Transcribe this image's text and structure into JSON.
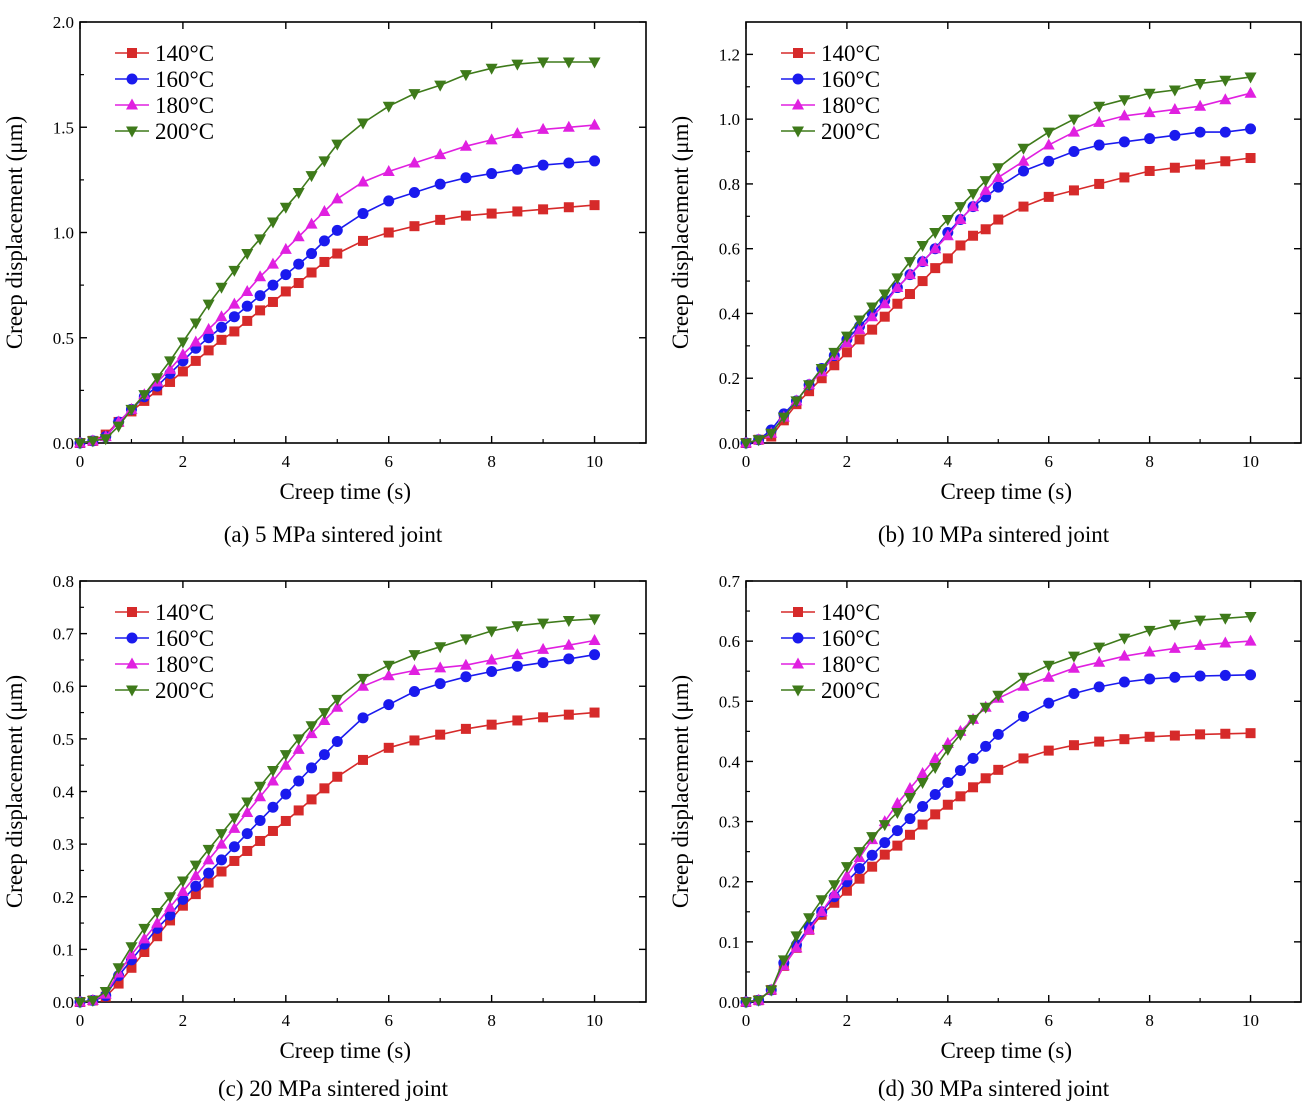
{
  "chart_data": [
    {
      "type": "line",
      "caption": "(a) 5 MPa sintered joint",
      "xlabel": "Creep time (s)",
      "ylabel": "Creep displacement (μm)",
      "xlim": [
        0,
        11
      ],
      "ylim": [
        0,
        2.0
      ],
      "xticks": [
        0,
        2,
        4,
        6,
        8,
        10
      ],
      "yticks": [
        0.0,
        0.5,
        1.0,
        1.5,
        2.0
      ],
      "ytick_labels": [
        "0.0",
        "0.5",
        "1.0",
        "1.5",
        "2.0"
      ],
      "legend_position": "top-left",
      "x": [
        0,
        0.25,
        0.5,
        0.75,
        1,
        1.25,
        1.5,
        1.75,
        2,
        2.25,
        2.5,
        2.75,
        3,
        3.25,
        3.5,
        3.75,
        4,
        4.25,
        4.5,
        4.75,
        5,
        5.5,
        6,
        6.5,
        7,
        7.5,
        8,
        8.5,
        9,
        9.5,
        10
      ],
      "series": [
        {
          "name": "140°C",
          "color": "#d62a2a",
          "marker": "square",
          "values": [
            0,
            0.01,
            0.04,
            0.1,
            0.15,
            0.2,
            0.25,
            0.29,
            0.34,
            0.39,
            0.44,
            0.49,
            0.53,
            0.58,
            0.63,
            0.67,
            0.72,
            0.76,
            0.81,
            0.86,
            0.9,
            0.96,
            1.0,
            1.03,
            1.06,
            1.08,
            1.09,
            1.1,
            1.11,
            1.12,
            1.13
          ]
        },
        {
          "name": "160°C",
          "color": "#1a1aee",
          "marker": "circle",
          "values": [
            0,
            0.01,
            0.03,
            0.1,
            0.16,
            0.22,
            0.27,
            0.33,
            0.39,
            0.45,
            0.5,
            0.55,
            0.6,
            0.65,
            0.7,
            0.75,
            0.8,
            0.85,
            0.9,
            0.96,
            1.01,
            1.09,
            1.15,
            1.19,
            1.23,
            1.26,
            1.28,
            1.3,
            1.32,
            1.33,
            1.34
          ]
        },
        {
          "name": "180°C",
          "color": "#e020e0",
          "marker": "triangle-up",
          "values": [
            0,
            0.01,
            0.03,
            0.1,
            0.16,
            0.23,
            0.29,
            0.35,
            0.42,
            0.48,
            0.54,
            0.6,
            0.66,
            0.72,
            0.79,
            0.85,
            0.92,
            0.98,
            1.04,
            1.1,
            1.16,
            1.24,
            1.29,
            1.33,
            1.37,
            1.41,
            1.44,
            1.47,
            1.49,
            1.5,
            1.51
          ]
        },
        {
          "name": "200°C",
          "color": "#3e7a1a",
          "marker": "triangle-down",
          "values": [
            0,
            0.01,
            0.02,
            0.08,
            0.16,
            0.23,
            0.31,
            0.39,
            0.48,
            0.57,
            0.66,
            0.74,
            0.82,
            0.9,
            0.97,
            1.05,
            1.12,
            1.19,
            1.27,
            1.34,
            1.42,
            1.52,
            1.6,
            1.66,
            1.7,
            1.75,
            1.78,
            1.8,
            1.81,
            1.81,
            1.81
          ]
        }
      ]
    },
    {
      "type": "line",
      "caption": "(b) 10 MPa sintered joint",
      "xlabel": "Creep time (s)",
      "ylabel": "Creep displacement (μm)",
      "xlim": [
        0,
        11
      ],
      "ylim": [
        0,
        1.3
      ],
      "xticks": [
        0,
        2,
        4,
        6,
        8,
        10
      ],
      "yticks": [
        0.0,
        0.2,
        0.4,
        0.6,
        0.8,
        1.0,
        1.2
      ],
      "ytick_labels": [
        "0.0",
        "0.2",
        "0.4",
        "0.6",
        "0.8",
        "1.0",
        "1.2"
      ],
      "legend_position": "top-left",
      "x": [
        0,
        0.25,
        0.5,
        0.75,
        1,
        1.25,
        1.5,
        1.75,
        2,
        2.25,
        2.5,
        2.75,
        3,
        3.25,
        3.5,
        3.75,
        4,
        4.25,
        4.5,
        4.75,
        5,
        5.5,
        6,
        6.5,
        7,
        7.5,
        8,
        8.5,
        9,
        9.5,
        10
      ],
      "series": [
        {
          "name": "140°C",
          "color": "#d62a2a",
          "marker": "square",
          "values": [
            0,
            0.01,
            0.02,
            0.07,
            0.12,
            0.16,
            0.2,
            0.24,
            0.28,
            0.32,
            0.35,
            0.39,
            0.43,
            0.46,
            0.5,
            0.54,
            0.57,
            0.61,
            0.64,
            0.66,
            0.69,
            0.73,
            0.76,
            0.78,
            0.8,
            0.82,
            0.84,
            0.85,
            0.86,
            0.87,
            0.88
          ]
        },
        {
          "name": "160°C",
          "color": "#1a1aee",
          "marker": "circle",
          "values": [
            0,
            0.01,
            0.04,
            0.09,
            0.13,
            0.18,
            0.23,
            0.27,
            0.32,
            0.36,
            0.4,
            0.44,
            0.48,
            0.52,
            0.56,
            0.6,
            0.65,
            0.69,
            0.73,
            0.76,
            0.79,
            0.84,
            0.87,
            0.9,
            0.92,
            0.93,
            0.94,
            0.95,
            0.96,
            0.96,
            0.97
          ]
        },
        {
          "name": "180°C",
          "color": "#e020e0",
          "marker": "triangle-up",
          "values": [
            0,
            0.01,
            0.03,
            0.08,
            0.13,
            0.18,
            0.22,
            0.27,
            0.31,
            0.35,
            0.39,
            0.43,
            0.48,
            0.52,
            0.56,
            0.6,
            0.64,
            0.69,
            0.73,
            0.78,
            0.82,
            0.87,
            0.92,
            0.96,
            0.99,
            1.01,
            1.02,
            1.03,
            1.04,
            1.06,
            1.08
          ]
        },
        {
          "name": "200°C",
          "color": "#3e7a1a",
          "marker": "triangle-down",
          "values": [
            0,
            0.01,
            0.03,
            0.08,
            0.13,
            0.18,
            0.23,
            0.28,
            0.33,
            0.38,
            0.42,
            0.46,
            0.51,
            0.56,
            0.61,
            0.65,
            0.69,
            0.73,
            0.77,
            0.81,
            0.85,
            0.91,
            0.96,
            1.0,
            1.04,
            1.06,
            1.08,
            1.09,
            1.11,
            1.12,
            1.13
          ]
        }
      ]
    },
    {
      "type": "line",
      "caption": "(c) 20 MPa sintered joint",
      "xlabel": "Creep time (s)",
      "ylabel": "Creep displacement (μm)",
      "xlim": [
        0,
        11
      ],
      "ylim": [
        0,
        0.8
      ],
      "xticks": [
        0,
        2,
        4,
        6,
        8,
        10
      ],
      "yticks": [
        0.0,
        0.1,
        0.2,
        0.3,
        0.4,
        0.5,
        0.6,
        0.7,
        0.8
      ],
      "ytick_labels": [
        "0.0",
        "0.1",
        "0.2",
        "0.3",
        "0.4",
        "0.5",
        "0.6",
        "0.7",
        "0.8"
      ],
      "legend_position": "top-left",
      "x": [
        0,
        0.25,
        0.5,
        0.75,
        1,
        1.25,
        1.5,
        1.75,
        2,
        2.25,
        2.5,
        2.75,
        3,
        3.25,
        3.5,
        3.75,
        4,
        4.25,
        4.5,
        4.75,
        5,
        5.5,
        6,
        6.5,
        7,
        7.5,
        8,
        8.5,
        9,
        9.5,
        10
      ],
      "series": [
        {
          "name": "140°C",
          "color": "#d62a2a",
          "marker": "square",
          "values": [
            0,
            0.003,
            0.01,
            0.035,
            0.065,
            0.095,
            0.125,
            0.155,
            0.183,
            0.205,
            0.227,
            0.248,
            0.268,
            0.287,
            0.306,
            0.325,
            0.344,
            0.364,
            0.385,
            0.406,
            0.428,
            0.46,
            0.483,
            0.497,
            0.508,
            0.519,
            0.527,
            0.535,
            0.541,
            0.546,
            0.55
          ]
        },
        {
          "name": "160°C",
          "color": "#1a1aee",
          "marker": "circle",
          "values": [
            0,
            0.003,
            0.012,
            0.05,
            0.08,
            0.11,
            0.14,
            0.165,
            0.195,
            0.22,
            0.245,
            0.27,
            0.295,
            0.32,
            0.345,
            0.37,
            0.395,
            0.42,
            0.445,
            0.47,
            0.495,
            0.54,
            0.565,
            0.59,
            0.605,
            0.618,
            0.628,
            0.638,
            0.645,
            0.652,
            0.66
          ]
        },
        {
          "name": "180°C",
          "color": "#e020e0",
          "marker": "triangle-up",
          "values": [
            0,
            0.003,
            0.015,
            0.055,
            0.09,
            0.12,
            0.15,
            0.18,
            0.21,
            0.24,
            0.27,
            0.3,
            0.33,
            0.36,
            0.39,
            0.42,
            0.45,
            0.48,
            0.51,
            0.535,
            0.56,
            0.6,
            0.62,
            0.63,
            0.635,
            0.64,
            0.65,
            0.66,
            0.67,
            0.678,
            0.687
          ]
        },
        {
          "name": "200°C",
          "color": "#3e7a1a",
          "marker": "triangle-down",
          "values": [
            0,
            0.003,
            0.02,
            0.065,
            0.105,
            0.14,
            0.17,
            0.2,
            0.23,
            0.26,
            0.29,
            0.32,
            0.35,
            0.38,
            0.41,
            0.44,
            0.47,
            0.5,
            0.525,
            0.55,
            0.575,
            0.615,
            0.64,
            0.66,
            0.675,
            0.69,
            0.705,
            0.715,
            0.72,
            0.725,
            0.728
          ]
        }
      ]
    },
    {
      "type": "line",
      "caption": "(d) 30 MPa sintered joint",
      "xlabel": "Creep time (s)",
      "ylabel": "Creep displacement (μm)",
      "xlim": [
        0,
        11
      ],
      "ylim": [
        0,
        0.7
      ],
      "xticks": [
        0,
        2,
        4,
        6,
        8,
        10
      ],
      "yticks": [
        0.0,
        0.1,
        0.2,
        0.3,
        0.4,
        0.5,
        0.6,
        0.7
      ],
      "ytick_labels": [
        "0.0",
        "0.1",
        "0.2",
        "0.3",
        "0.4",
        "0.5",
        "0.6",
        "0.7"
      ],
      "legend_position": "top-left",
      "x": [
        0,
        0.25,
        0.5,
        0.75,
        1,
        1.25,
        1.5,
        1.75,
        2,
        2.25,
        2.5,
        2.75,
        3,
        3.25,
        3.5,
        3.75,
        4,
        4.25,
        4.5,
        4.75,
        5,
        5.5,
        6,
        6.5,
        7,
        7.5,
        8,
        8.5,
        9,
        9.5,
        10
      ],
      "series": [
        {
          "name": "140°C",
          "color": "#d62a2a",
          "marker": "square",
          "values": [
            0,
            0.003,
            0.02,
            0.06,
            0.09,
            0.12,
            0.145,
            0.165,
            0.185,
            0.205,
            0.225,
            0.245,
            0.26,
            0.278,
            0.295,
            0.312,
            0.328,
            0.342,
            0.357,
            0.372,
            0.386,
            0.405,
            0.418,
            0.427,
            0.433,
            0.437,
            0.441,
            0.443,
            0.445,
            0.446,
            0.447
          ]
        },
        {
          "name": "160°C",
          "color": "#1a1aee",
          "marker": "circle",
          "values": [
            0,
            0.003,
            0.02,
            0.065,
            0.095,
            0.125,
            0.15,
            0.175,
            0.2,
            0.222,
            0.244,
            0.265,
            0.285,
            0.305,
            0.325,
            0.345,
            0.365,
            0.385,
            0.405,
            0.425,
            0.445,
            0.475,
            0.497,
            0.513,
            0.524,
            0.532,
            0.537,
            0.54,
            0.542,
            0.543,
            0.544
          ]
        },
        {
          "name": "180°C",
          "color": "#e020e0",
          "marker": "triangle-up",
          "values": [
            0,
            0.003,
            0.02,
            0.06,
            0.09,
            0.12,
            0.15,
            0.18,
            0.21,
            0.24,
            0.27,
            0.3,
            0.33,
            0.355,
            0.38,
            0.405,
            0.43,
            0.45,
            0.47,
            0.49,
            0.505,
            0.525,
            0.54,
            0.555,
            0.565,
            0.575,
            0.582,
            0.588,
            0.593,
            0.597,
            0.6
          ]
        },
        {
          "name": "200°C",
          "color": "#3e7a1a",
          "marker": "triangle-down",
          "values": [
            0,
            0.003,
            0.02,
            0.07,
            0.11,
            0.14,
            0.17,
            0.195,
            0.225,
            0.25,
            0.275,
            0.295,
            0.315,
            0.34,
            0.365,
            0.39,
            0.42,
            0.445,
            0.47,
            0.49,
            0.51,
            0.54,
            0.56,
            0.575,
            0.59,
            0.605,
            0.618,
            0.628,
            0.635,
            0.638,
            0.641
          ]
        }
      ]
    }
  ]
}
